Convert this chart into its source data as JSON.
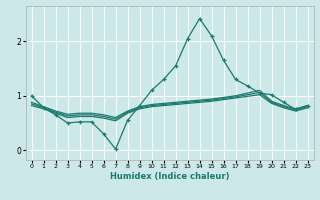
{
  "xlabel": "Humidex (Indice chaleur)",
  "background_color": "#cce8e8",
  "grid_color": "#ffffff",
  "line_color": "#1a7a6e",
  "xlim": [
    -0.5,
    23.5
  ],
  "ylim": [
    -0.18,
    2.65
  ],
  "yticks": [
    0,
    1,
    2
  ],
  "xticks": [
    0,
    1,
    2,
    3,
    4,
    5,
    6,
    7,
    8,
    9,
    10,
    11,
    12,
    13,
    14,
    15,
    16,
    17,
    18,
    19,
    20,
    21,
    22,
    23
  ],
  "series": [
    {
      "x": [
        0,
        1,
        2,
        3,
        4,
        5,
        6,
        7,
        8,
        9,
        10,
        11,
        12,
        13,
        14,
        15,
        16,
        17,
        18,
        19,
        20,
        21,
        22,
        23
      ],
      "y": [
        1.0,
        0.78,
        0.65,
        0.5,
        0.52,
        0.52,
        0.3,
        0.02,
        0.55,
        0.82,
        1.1,
        1.3,
        1.55,
        2.05,
        2.42,
        2.1,
        1.65,
        1.3,
        1.18,
        1.05,
        1.02,
        0.88,
        0.75,
        0.82
      ],
      "marker": "+"
    },
    {
      "x": [
        0,
        1,
        2,
        3,
        4,
        5,
        6,
        7,
        8,
        9,
        10,
        11,
        12,
        13,
        14,
        15,
        16,
        17,
        18,
        19,
        20,
        21,
        22,
        23
      ],
      "y": [
        0.88,
        0.8,
        0.72,
        0.66,
        0.68,
        0.68,
        0.65,
        0.6,
        0.72,
        0.8,
        0.84,
        0.86,
        0.88,
        0.9,
        0.92,
        0.94,
        0.97,
        1.0,
        1.05,
        1.1,
        0.9,
        0.82,
        0.76,
        0.82
      ],
      "marker": null
    },
    {
      "x": [
        0,
        1,
        2,
        3,
        4,
        5,
        6,
        7,
        8,
        9,
        10,
        11,
        12,
        13,
        14,
        15,
        16,
        17,
        18,
        19,
        20,
        21,
        22,
        23
      ],
      "y": [
        0.85,
        0.78,
        0.7,
        0.63,
        0.65,
        0.65,
        0.62,
        0.57,
        0.7,
        0.78,
        0.82,
        0.84,
        0.86,
        0.88,
        0.9,
        0.92,
        0.95,
        0.98,
        1.02,
        1.06,
        0.88,
        0.8,
        0.74,
        0.8
      ],
      "marker": null
    },
    {
      "x": [
        0,
        1,
        2,
        3,
        4,
        5,
        6,
        7,
        8,
        9,
        10,
        11,
        12,
        13,
        14,
        15,
        16,
        17,
        18,
        19,
        20,
        21,
        22,
        23
      ],
      "y": [
        0.82,
        0.76,
        0.68,
        0.6,
        0.62,
        0.62,
        0.59,
        0.54,
        0.68,
        0.76,
        0.8,
        0.82,
        0.84,
        0.86,
        0.88,
        0.9,
        0.93,
        0.96,
        0.99,
        1.02,
        0.86,
        0.78,
        0.72,
        0.78
      ],
      "marker": null
    }
  ]
}
